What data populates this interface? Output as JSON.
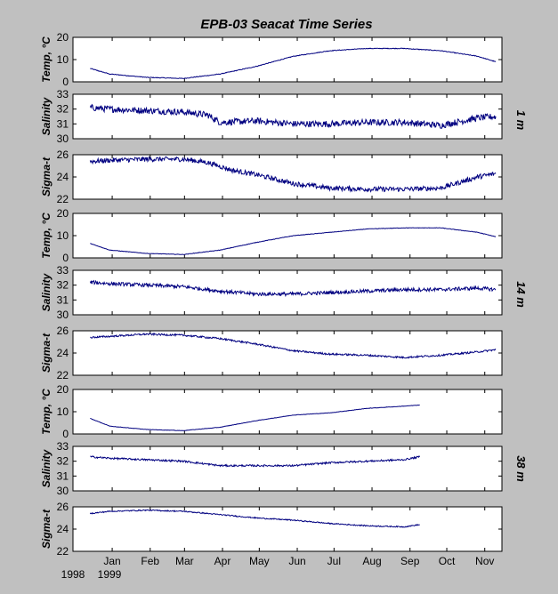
{
  "title": "EPB-03  Seacat Time Series",
  "colors": {
    "background": "#c0c0c0",
    "plot_bg": "#ffffff",
    "line": "#000080"
  },
  "x_axis": {
    "months": [
      "Jan",
      "Feb",
      "Mar",
      "Apr",
      "May",
      "Jun",
      "Jul",
      "Aug",
      "Sep",
      "Oct",
      "Nov"
    ],
    "month_days": [
      32,
      63,
      91,
      122,
      152,
      183,
      213,
      244,
      275,
      305,
      336
    ],
    "year_start": "1998",
    "year_end": "1999",
    "xlim": [
      0,
      350
    ]
  },
  "depth_labels": [
    "1 m",
    "14 m",
    "38 m"
  ],
  "chart_data": [
    {
      "type": "line",
      "depth": "1 m",
      "variable": "temp",
      "ylabel": "Temp, °C",
      "ylim": [
        0,
        20
      ],
      "yticks": [
        0,
        10,
        20
      ],
      "noise": 0.15,
      "x": [
        14,
        30,
        60,
        90,
        120,
        150,
        180,
        210,
        240,
        270,
        300,
        330,
        345
      ],
      "y": [
        6,
        3.5,
        2,
        1.5,
        3.5,
        7,
        11.5,
        14,
        15,
        15,
        14,
        11.5,
        9
      ]
    },
    {
      "type": "line",
      "depth": "1 m",
      "variable": "salinity",
      "ylabel": "Salinity",
      "ylim": [
        30,
        33
      ],
      "yticks": [
        30,
        31,
        32,
        33
      ],
      "noise": 0.22,
      "x": [
        14,
        30,
        60,
        90,
        110,
        120,
        150,
        180,
        210,
        240,
        270,
        300,
        330,
        345
      ],
      "y": [
        32.1,
        32,
        31.9,
        31.8,
        31.6,
        31.1,
        31.2,
        31,
        31,
        31.1,
        31.1,
        30.9,
        31.4,
        31.5
      ]
    },
    {
      "type": "line",
      "depth": "1 m",
      "variable": "sigma",
      "ylabel": "Sigma-t",
      "ylim": [
        22,
        26
      ],
      "yticks": [
        22,
        24,
        26
      ],
      "noise": 0.22,
      "x": [
        14,
        30,
        60,
        90,
        110,
        130,
        150,
        180,
        210,
        240,
        270,
        300,
        330,
        345
      ],
      "y": [
        25.4,
        25.5,
        25.6,
        25.6,
        25.3,
        24.6,
        24.2,
        23.4,
        23,
        22.9,
        22.9,
        23,
        24,
        24.3
      ]
    },
    {
      "type": "line",
      "depth": "14 m",
      "variable": "temp",
      "ylabel": "Temp, °C",
      "ylim": [
        0,
        20
      ],
      "yticks": [
        0,
        10,
        20
      ],
      "noise": 0.1,
      "x": [
        14,
        30,
        60,
        90,
        120,
        150,
        180,
        210,
        240,
        270,
        300,
        330,
        345
      ],
      "y": [
        6.5,
        3.5,
        2,
        1.5,
        3.5,
        7,
        10,
        11.5,
        13,
        13.5,
        13.5,
        11.5,
        9.5
      ]
    },
    {
      "type": "line",
      "depth": "14 m",
      "variable": "salinity",
      "ylabel": "Salinity",
      "ylim": [
        30,
        33
      ],
      "yticks": [
        30,
        31,
        32,
        33
      ],
      "noise": 0.12,
      "x": [
        14,
        30,
        60,
        90,
        120,
        150,
        180,
        210,
        240,
        270,
        300,
        330,
        345
      ],
      "y": [
        32.2,
        32.1,
        32,
        31.9,
        31.6,
        31.4,
        31.4,
        31.5,
        31.6,
        31.7,
        31.7,
        31.8,
        31.7
      ]
    },
    {
      "type": "line",
      "depth": "14 m",
      "variable": "sigma",
      "ylabel": "Sigma-t",
      "ylim": [
        22,
        26
      ],
      "yticks": [
        22,
        24,
        26
      ],
      "noise": 0.08,
      "x": [
        14,
        30,
        60,
        90,
        120,
        150,
        180,
        210,
        240,
        270,
        300,
        330,
        345
      ],
      "y": [
        25.4,
        25.5,
        25.7,
        25.6,
        25.3,
        24.8,
        24.2,
        23.9,
        23.8,
        23.6,
        23.8,
        24.1,
        24.3
      ]
    },
    {
      "type": "line",
      "depth": "38 m",
      "variable": "temp",
      "ylabel": "Temp, °C",
      "ylim": [
        0,
        20
      ],
      "yticks": [
        0,
        10,
        20
      ],
      "noise": 0.08,
      "x": [
        14,
        30,
        60,
        90,
        120,
        150,
        180,
        210,
        240,
        270,
        283
      ],
      "y": [
        7,
        3.5,
        2,
        1.5,
        3,
        6,
        8.5,
        9.5,
        11.5,
        12.5,
        13
      ]
    },
    {
      "type": "line",
      "depth": "38 m",
      "variable": "salinity",
      "ylabel": "Salinity",
      "ylim": [
        30,
        33
      ],
      "yticks": [
        30,
        31,
        32,
        33
      ],
      "noise": 0.06,
      "x": [
        14,
        30,
        60,
        90,
        120,
        150,
        180,
        210,
        240,
        270,
        283
      ],
      "y": [
        32.3,
        32.2,
        32.1,
        32,
        31.7,
        31.7,
        31.7,
        31.9,
        32,
        32.1,
        32.3
      ]
    },
    {
      "type": "line",
      "depth": "38 m",
      "variable": "sigma",
      "ylabel": "Sigma-t",
      "ylim": [
        22,
        26
      ],
      "yticks": [
        22,
        24,
        26
      ],
      "noise": 0.05,
      "x": [
        14,
        30,
        60,
        90,
        120,
        150,
        180,
        210,
        240,
        270,
        283
      ],
      "y": [
        25.4,
        25.6,
        25.7,
        25.6,
        25.3,
        25,
        24.8,
        24.5,
        24.3,
        24.2,
        24.4
      ]
    }
  ]
}
